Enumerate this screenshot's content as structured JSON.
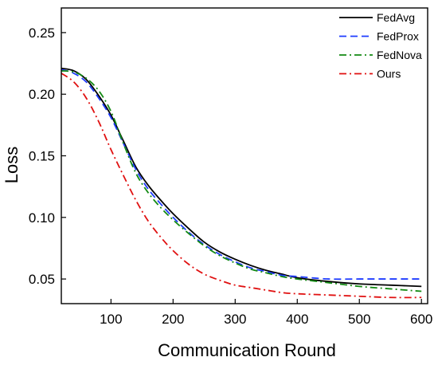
{
  "chart_data": {
    "type": "line",
    "title": "",
    "xlabel": "Communication Round",
    "ylabel": "Loss",
    "xlim": [
      20,
      610
    ],
    "ylim": [
      0.03,
      0.27
    ],
    "xticks": [
      100,
      200,
      300,
      400,
      500,
      600
    ],
    "yticks": [
      0.05,
      0.1,
      0.15,
      0.2,
      0.25
    ],
    "ytick_labels": [
      "0.05",
      "0.10",
      "0.15",
      "0.20",
      "0.25"
    ],
    "grid": false,
    "legend_position": "top-right",
    "series": [
      {
        "name": "FedAvg",
        "color": "#000000",
        "dash": "solid",
        "x": [
          20,
          40,
          60,
          80,
          100,
          120,
          140,
          160,
          180,
          200,
          225,
          250,
          275,
          300,
          325,
          350,
          375,
          400,
          450,
          500,
          550,
          600
        ],
        "y": [
          0.221,
          0.219,
          0.212,
          0.199,
          0.183,
          0.162,
          0.141,
          0.126,
          0.114,
          0.103,
          0.091,
          0.08,
          0.072,
          0.066,
          0.061,
          0.057,
          0.054,
          0.051,
          0.048,
          0.046,
          0.045,
          0.044
        ]
      },
      {
        "name": "FedProx",
        "color": "#1f3cff",
        "dash": "dashed",
        "x": [
          20,
          40,
          60,
          80,
          100,
          120,
          140,
          160,
          180,
          200,
          225,
          250,
          275,
          300,
          325,
          350,
          375,
          400,
          450,
          500,
          550,
          600
        ],
        "y": [
          0.22,
          0.217,
          0.21,
          0.197,
          0.181,
          0.16,
          0.139,
          0.123,
          0.111,
          0.1,
          0.088,
          0.078,
          0.07,
          0.064,
          0.059,
          0.056,
          0.053,
          0.052,
          0.05,
          0.05,
          0.05,
          0.05
        ]
      },
      {
        "name": "FedNova",
        "color": "#138a13",
        "dash": "dashdot",
        "x": [
          20,
          40,
          60,
          80,
          100,
          120,
          140,
          160,
          180,
          200,
          225,
          250,
          275,
          300,
          325,
          350,
          375,
          400,
          450,
          500,
          550,
          600
        ],
        "y": [
          0.219,
          0.218,
          0.213,
          0.203,
          0.186,
          0.16,
          0.136,
          0.12,
          0.108,
          0.098,
          0.087,
          0.077,
          0.069,
          0.063,
          0.058,
          0.055,
          0.052,
          0.05,
          0.047,
          0.044,
          0.042,
          0.04
        ]
      },
      {
        "name": "Ours",
        "color": "#e01010",
        "dash": "dashdot",
        "x": [
          20,
          40,
          60,
          80,
          100,
          120,
          140,
          160,
          180,
          200,
          225,
          250,
          275,
          300,
          325,
          350,
          375,
          400,
          450,
          500,
          550,
          600
        ],
        "y": [
          0.217,
          0.21,
          0.197,
          0.178,
          0.155,
          0.134,
          0.114,
          0.097,
          0.084,
          0.073,
          0.062,
          0.054,
          0.049,
          0.045,
          0.043,
          0.041,
          0.039,
          0.038,
          0.037,
          0.036,
          0.035,
          0.035
        ]
      }
    ]
  }
}
